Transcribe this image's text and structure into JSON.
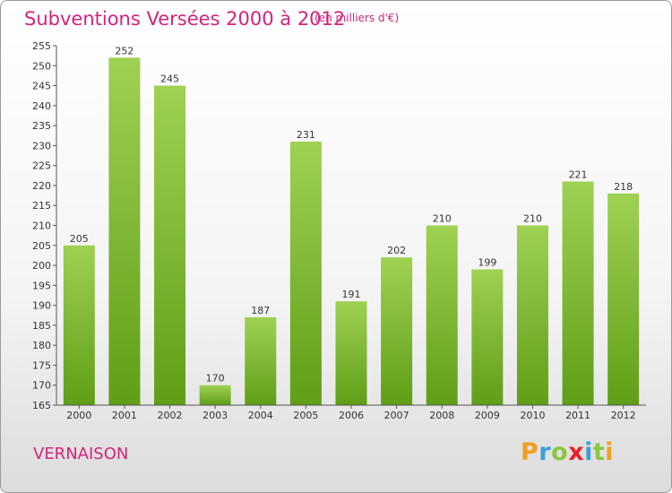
{
  "chart_data": {
    "type": "bar",
    "title": "Subventions Versées 2000 à 2012",
    "subtitle": "(en milliers d'€)",
    "categories": [
      "2000",
      "2001",
      "2002",
      "2003",
      "2004",
      "2005",
      "2006",
      "2007",
      "2008",
      "2009",
      "2010",
      "2011",
      "2012"
    ],
    "values": [
      205,
      252,
      245,
      170,
      187,
      231,
      191,
      202,
      210,
      199,
      210,
      221,
      218
    ],
    "ylim": [
      165,
      255
    ],
    "ytick_step": 5,
    "grid": false,
    "bar_color_top": "#9fd152",
    "bar_color_bottom": "#5f9e16"
  },
  "footer": {
    "commune": "VERNAISON",
    "logo_letters": [
      {
        "ch": "P",
        "color": "#f0a020"
      },
      {
        "ch": "r",
        "color": "#3aa0d8"
      },
      {
        "ch": "o",
        "color": "#8cc63f"
      },
      {
        "ch": "x",
        "color": "#e8202a"
      },
      {
        "ch": "i",
        "color": "#3aa0d8"
      },
      {
        "ch": "t",
        "color": "#8cc63f"
      },
      {
        "ch": "i",
        "color": "#f0a020"
      }
    ]
  }
}
